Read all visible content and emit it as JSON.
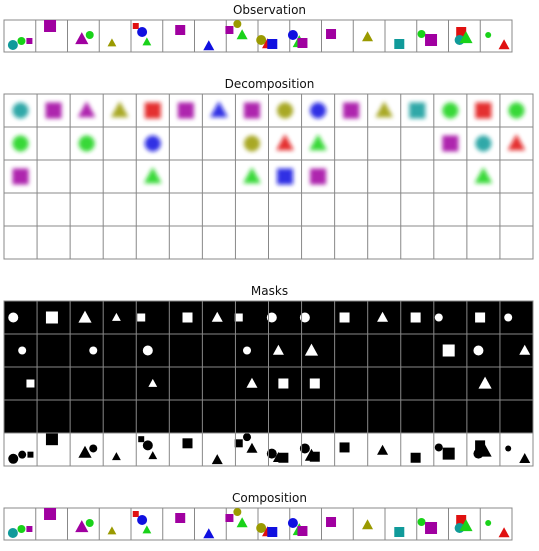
{
  "titles": {
    "observation": "Observation",
    "decomposition": "Decomposition",
    "masks": "Masks",
    "composition": "Composition"
  },
  "colors": {
    "green": "#19d219",
    "magenta": "#a000a0",
    "red": "#e01010",
    "blue": "#1010e0",
    "olive": "#9a9a00",
    "teal": "#109a9a",
    "grid": "#888888",
    "mask_bg": "#000000",
    "mask_fg": "#ffffff"
  },
  "scenes": [
    [
      {
        "s": "circle",
        "c": "teal"
      },
      {
        "s": "circle",
        "c": "green"
      },
      {
        "s": "square",
        "c": "magenta"
      }
    ],
    [
      {
        "s": "square",
        "c": "magenta"
      }
    ],
    [
      {
        "s": "triangle",
        "c": "magenta"
      },
      {
        "s": "circle",
        "c": "green"
      }
    ],
    [
      {
        "s": "triangle",
        "c": "olive"
      }
    ],
    [
      {
        "s": "square",
        "c": "red"
      },
      {
        "s": "circle",
        "c": "blue"
      },
      {
        "s": "triangle",
        "c": "green"
      }
    ],
    [
      {
        "s": "square",
        "c": "magenta"
      }
    ],
    [
      {
        "s": "triangle",
        "c": "blue"
      }
    ],
    [
      {
        "s": "square",
        "c": "magenta"
      },
      {
        "s": "circle",
        "c": "olive"
      },
      {
        "s": "triangle",
        "c": "green"
      }
    ],
    [
      {
        "s": "circle",
        "c": "olive"
      },
      {
        "s": "triangle",
        "c": "red"
      },
      {
        "s": "square",
        "c": "blue"
      }
    ],
    [
      {
        "s": "circle",
        "c": "blue"
      },
      {
        "s": "triangle",
        "c": "green"
      },
      {
        "s": "square",
        "c": "magenta"
      }
    ],
    [
      {
        "s": "square",
        "c": "magenta"
      }
    ],
    [
      {
        "s": "triangle",
        "c": "olive"
      }
    ],
    [
      {
        "s": "square",
        "c": "teal"
      }
    ],
    [
      {
        "s": "circle",
        "c": "green"
      },
      {
        "s": "square",
        "c": "magenta"
      }
    ],
    [
      {
        "s": "square",
        "c": "red"
      },
      {
        "s": "circle",
        "c": "teal"
      },
      {
        "s": "triangle",
        "c": "green"
      }
    ],
    [
      {
        "s": "circle",
        "c": "green"
      },
      {
        "s": "triangle",
        "c": "red"
      }
    ]
  ]
}
